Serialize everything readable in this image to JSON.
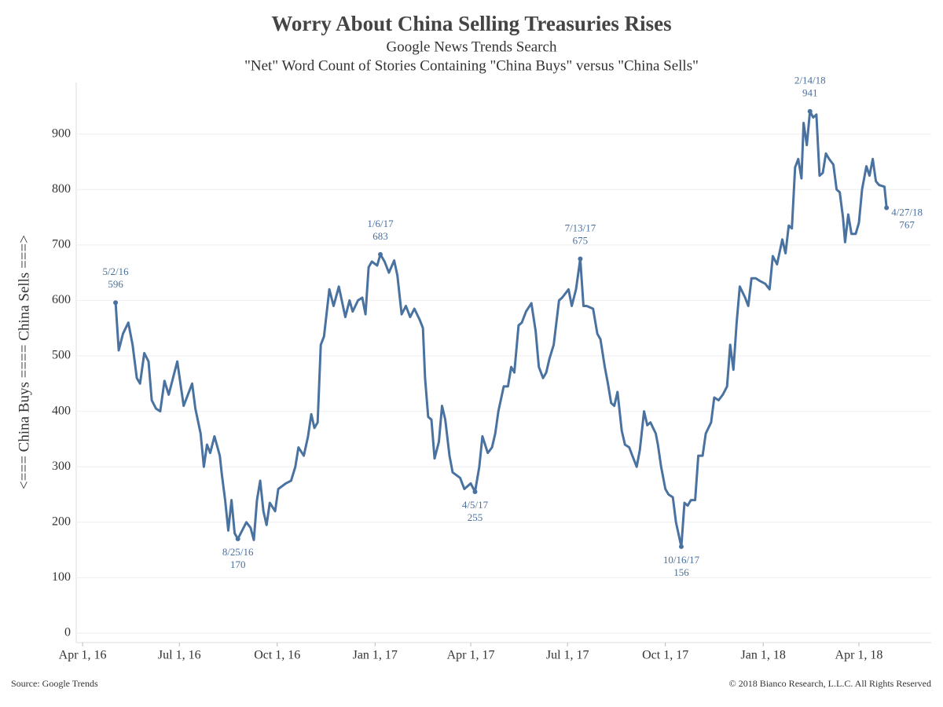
{
  "chart_data": {
    "type": "line",
    "title": "Worry About China Selling Treasuries Rises",
    "subtitle": "Google News Trends Search",
    "subtitle2": "\"Net\" Word Count of Stories Containing \"China Buys\" versus \"China Sells\"",
    "y_label": "<=== China Buys ==== China Sells ===>",
    "source": "Source: Google Trends",
    "copyright": "© 2018 Bianco Research, L.L.C. All Rights Reserved",
    "color": "#4a72a0",
    "grid": true,
    "xlim": [
      "2016-03-26",
      "2018-06-08"
    ],
    "xticks": [
      {
        "value": "2016-04-01",
        "label": "Apr 1, 16"
      },
      {
        "value": "2016-07-01",
        "label": "Jul 1, 16"
      },
      {
        "value": "2016-10-01",
        "label": "Oct 1, 16"
      },
      {
        "value": "2017-01-01",
        "label": "Jan 1, 17"
      },
      {
        "value": "2017-04-01",
        "label": "Apr 1, 17"
      },
      {
        "value": "2017-07-01",
        "label": "Jul 1, 17"
      },
      {
        "value": "2017-10-01",
        "label": "Oct 1, 17"
      },
      {
        "value": "2018-01-01",
        "label": "Jan 1, 18"
      },
      {
        "value": "2018-04-01",
        "label": "Apr 1, 18"
      }
    ],
    "ylim": [
      -17,
      993
    ],
    "yticks": [
      0,
      100,
      200,
      300,
      400,
      500,
      600,
      700,
      800,
      900
    ],
    "x": [
      "2016-05-02",
      "2016-05-05",
      "2016-05-09",
      "2016-05-14",
      "2016-05-18",
      "2016-05-22",
      "2016-05-25",
      "2016-05-29",
      "2016-06-02",
      "2016-06-05",
      "2016-06-09",
      "2016-06-13",
      "2016-06-17",
      "2016-06-21",
      "2016-06-29",
      "2016-07-05",
      "2016-07-13",
      "2016-07-16",
      "2016-07-21",
      "2016-07-24",
      "2016-07-27",
      "2016-07-30",
      "2016-08-03",
      "2016-08-08",
      "2016-08-10",
      "2016-08-13",
      "2016-08-16",
      "2016-08-19",
      "2016-08-22",
      "2016-08-25",
      "2016-09-02",
      "2016-09-06",
      "2016-09-09",
      "2016-09-12",
      "2016-09-15",
      "2016-09-18",
      "2016-09-21",
      "2016-09-24",
      "2016-09-29",
      "2016-10-02",
      "2016-10-09",
      "2016-10-14",
      "2016-10-18",
      "2016-10-21",
      "2016-10-26",
      "2016-10-30",
      "2016-11-02",
      "2016-11-05",
      "2016-11-08",
      "2016-11-11",
      "2016-11-14",
      "2016-11-19",
      "2016-11-23",
      "2016-11-28",
      "2016-12-04",
      "2016-12-08",
      "2016-12-11",
      "2016-12-16",
      "2016-12-20",
      "2016-12-23",
      "2016-12-26",
      "2016-12-29",
      "2017-01-03",
      "2017-01-06",
      "2017-01-10",
      "2017-01-14",
      "2017-01-19",
      "2017-01-22",
      "2017-01-26",
      "2017-01-30",
      "2017-02-03",
      "2017-02-07",
      "2017-02-12",
      "2017-02-15",
      "2017-02-17",
      "2017-02-20",
      "2017-02-23",
      "2017-02-26",
      "2017-03-02",
      "2017-03-05",
      "2017-03-08",
      "2017-03-12",
      "2017-03-15",
      "2017-03-22",
      "2017-03-26",
      "2017-04-01",
      "2017-04-05",
      "2017-04-09",
      "2017-04-12",
      "2017-04-17",
      "2017-04-21",
      "2017-04-24",
      "2017-04-27",
      "2017-05-02",
      "2017-05-06",
      "2017-05-09",
      "2017-05-12",
      "2017-05-16",
      "2017-05-19",
      "2017-05-23",
      "2017-05-28",
      "2017-06-01",
      "2017-06-04",
      "2017-06-08",
      "2017-06-11",
      "2017-06-14",
      "2017-06-18",
      "2017-06-23",
      "2017-06-26",
      "2017-07-02",
      "2017-07-05",
      "2017-07-09",
      "2017-07-13",
      "2017-07-16",
      "2017-07-19",
      "2017-07-25",
      "2017-07-29",
      "2017-08-01",
      "2017-08-05",
      "2017-08-08",
      "2017-08-11",
      "2017-08-14",
      "2017-08-17",
      "2017-08-21",
      "2017-08-24",
      "2017-08-28",
      "2017-08-31",
      "2017-09-04",
      "2017-09-07",
      "2017-09-11",
      "2017-09-14",
      "2017-09-17",
      "2017-09-22",
      "2017-09-24",
      "2017-09-27",
      "2017-10-01",
      "2017-10-04",
      "2017-10-08",
      "2017-10-11",
      "2017-10-16",
      "2017-10-19",
      "2017-10-22",
      "2017-10-25",
      "2017-10-29",
      "2017-11-01",
      "2017-11-05",
      "2017-11-08",
      "2017-11-13",
      "2017-11-16",
      "2017-11-20",
      "2017-11-24",
      "2017-11-28",
      "2017-12-01",
      "2017-12-04",
      "2017-12-07",
      "2017-12-10",
      "2017-12-15",
      "2017-12-18",
      "2017-12-21",
      "2017-12-25",
      "2017-12-29",
      "2018-01-03",
      "2018-01-07",
      "2018-01-10",
      "2018-01-14",
      "2018-01-19",
      "2018-01-22",
      "2018-01-25",
      "2018-01-28",
      "2018-01-31",
      "2018-02-03",
      "2018-02-06",
      "2018-02-08",
      "2018-02-11",
      "2018-02-14",
      "2018-02-17",
      "2018-02-20",
      "2018-02-23",
      "2018-02-26",
      "2018-03-01",
      "2018-03-04",
      "2018-03-08",
      "2018-03-11",
      "2018-03-14",
      "2018-03-17",
      "2018-03-19",
      "2018-03-22",
      "2018-03-25",
      "2018-03-29",
      "2018-04-01",
      "2018-04-04",
      "2018-04-08",
      "2018-04-11",
      "2018-04-14",
      "2018-04-17",
      "2018-04-20",
      "2018-04-25",
      "2018-04-27"
    ],
    "values": [
      596,
      510,
      540,
      560,
      520,
      460,
      450,
      505,
      490,
      420,
      405,
      400,
      455,
      430,
      490,
      410,
      450,
      405,
      360,
      300,
      340,
      325,
      355,
      320,
      285,
      240,
      185,
      240,
      180,
      170,
      200,
      190,
      168,
      240,
      275,
      220,
      195,
      235,
      220,
      260,
      270,
      275,
      300,
      335,
      320,
      355,
      395,
      370,
      380,
      520,
      535,
      620,
      590,
      625,
      570,
      600,
      580,
      600,
      605,
      575,
      660,
      670,
      663,
      683,
      670,
      650,
      672,
      645,
      575,
      590,
      570,
      585,
      565,
      550,
      460,
      390,
      385,
      315,
      345,
      410,
      385,
      320,
      290,
      280,
      260,
      270,
      255,
      300,
      355,
      325,
      335,
      360,
      400,
      445,
      445,
      480,
      470,
      555,
      560,
      580,
      595,
      545,
      480,
      460,
      470,
      495,
      520,
      600,
      605,
      620,
      590,
      620,
      675,
      590,
      590,
      585,
      540,
      530,
      480,
      450,
      415,
      410,
      435,
      365,
      340,
      335,
      320,
      300,
      330,
      400,
      375,
      380,
      360,
      340,
      300,
      260,
      250,
      245,
      200,
      156,
      235,
      230,
      240,
      240,
      320,
      320,
      360,
      380,
      425,
      420,
      430,
      445,
      520,
      475,
      560,
      625,
      605,
      590,
      640,
      640,
      635,
      630,
      620,
      680,
      665,
      710,
      685,
      735,
      730,
      840,
      855,
      820,
      920,
      880,
      941,
      930,
      935,
      825,
      830,
      865,
      855,
      845,
      800,
      795,
      750,
      705,
      755,
      720,
      720,
      740,
      800,
      842,
      825,
      855,
      815,
      808,
      805,
      767
    ],
    "annotations": [
      {
        "label": "5/2/16",
        "x": "2016-05-02",
        "y": 596,
        "position": "above"
      },
      {
        "label": "8/25/16",
        "x": "2016-08-25",
        "y": 170,
        "position": "below"
      },
      {
        "label": "1/6/17",
        "x": "2017-01-06",
        "y": 683,
        "position": "above"
      },
      {
        "label": "4/5/17",
        "x": "2017-04-05",
        "y": 255,
        "position": "below"
      },
      {
        "label": "7/13/17",
        "x": "2017-07-13",
        "y": 675,
        "position": "above"
      },
      {
        "label": "10/16/17",
        "x": "2017-10-16",
        "y": 156,
        "position": "below"
      },
      {
        "label": "2/14/18",
        "x": "2018-02-14",
        "y": 941,
        "position": "above"
      },
      {
        "label": "4/27/18",
        "x": "2018-04-27",
        "y": 767,
        "position": "right"
      }
    ]
  }
}
